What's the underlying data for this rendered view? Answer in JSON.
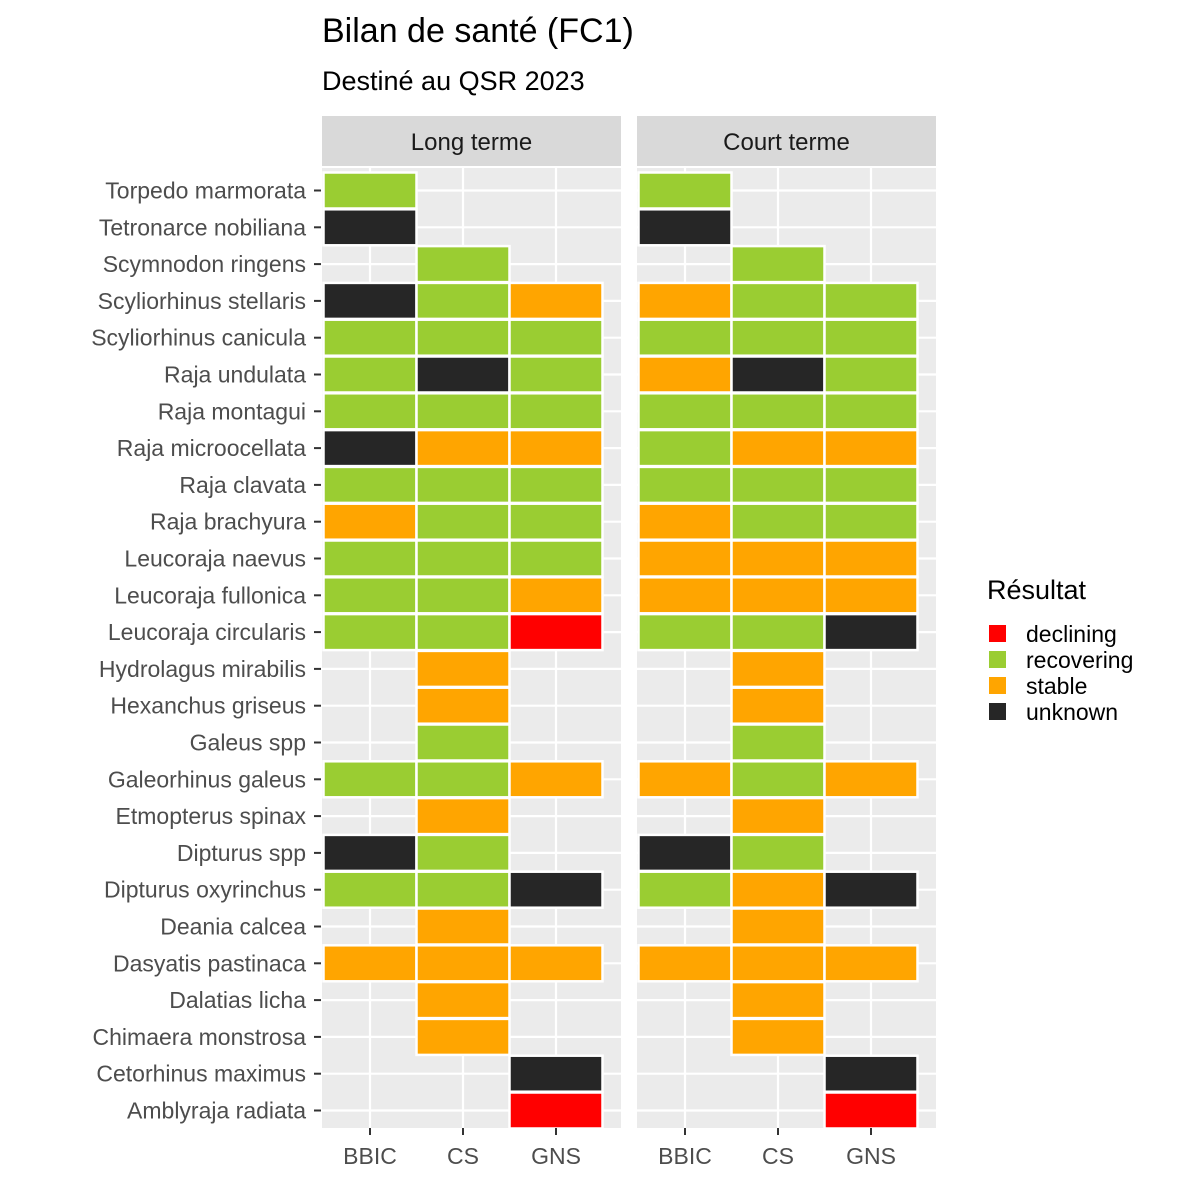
{
  "chart_data": {
    "type": "heatmap",
    "title": "Bilan de santé (FC1)",
    "subtitle": "Destiné au QSR 2023",
    "facets": [
      "Long terme",
      "Court terme"
    ],
    "x_categories": [
      "BBIC",
      "CS",
      "GNS"
    ],
    "y_categories": [
      "Torpedo marmorata",
      "Tetronarce nobiliana",
      "Scymnodon ringens",
      "Scyliorhinus stellaris",
      "Scyliorhinus canicula",
      "Raja undulata",
      "Raja montagui",
      "Raja microocellata",
      "Raja clavata",
      "Raja brachyura",
      "Leucoraja naevus",
      "Leucoraja fullonica",
      "Leucoraja circularis",
      "Hydrolagus mirabilis",
      "Hexanchus griseus",
      "Galeus spp",
      "Galeorhinus galeus",
      "Etmopterus spinax",
      "Dipturus spp",
      "Dipturus oxyrinchus",
      "Deania calcea",
      "Dasyatis pastinaca",
      "Dalatias licha",
      "Chimaera monstrosa",
      "Cetorhinus maximus",
      "Amblyraja radiata"
    ],
    "legend": {
      "title": "Résultat",
      "position": "right",
      "entries": [
        {
          "label": "declining",
          "color": "#ff0000"
        },
        {
          "label": "recovering",
          "color": "#9acd32"
        },
        {
          "label": "stable",
          "color": "#ffa500"
        },
        {
          "label": "unknown",
          "color": "#262626"
        }
      ]
    },
    "cells": {
      "Long terme": {
        "Torpedo marmorata": [
          "recovering",
          null,
          null
        ],
        "Tetronarce nobiliana": [
          "unknown",
          null,
          null
        ],
        "Scymnodon ringens": [
          null,
          "recovering",
          null
        ],
        "Scyliorhinus stellaris": [
          "unknown",
          "recovering",
          "stable"
        ],
        "Scyliorhinus canicula": [
          "recovering",
          "recovering",
          "recovering"
        ],
        "Raja undulata": [
          "recovering",
          "unknown",
          "recovering"
        ],
        "Raja montagui": [
          "recovering",
          "recovering",
          "recovering"
        ],
        "Raja microocellata": [
          "unknown",
          "stable",
          "stable"
        ],
        "Raja clavata": [
          "recovering",
          "recovering",
          "recovering"
        ],
        "Raja brachyura": [
          "stable",
          "recovering",
          "recovering"
        ],
        "Leucoraja naevus": [
          "recovering",
          "recovering",
          "recovering"
        ],
        "Leucoraja fullonica": [
          "recovering",
          "recovering",
          "stable"
        ],
        "Leucoraja circularis": [
          "recovering",
          "recovering",
          "declining"
        ],
        "Hydrolagus mirabilis": [
          null,
          "stable",
          null
        ],
        "Hexanchus griseus": [
          null,
          "stable",
          null
        ],
        "Galeus spp": [
          null,
          "recovering",
          null
        ],
        "Galeorhinus galeus": [
          "recovering",
          "recovering",
          "stable"
        ],
        "Etmopterus spinax": [
          null,
          "stable",
          null
        ],
        "Dipturus spp": [
          "unknown",
          "recovering",
          null
        ],
        "Dipturus oxyrinchus": [
          "recovering",
          "recovering",
          "unknown"
        ],
        "Deania calcea": [
          null,
          "stable",
          null
        ],
        "Dasyatis pastinaca": [
          "stable",
          "stable",
          "stable"
        ],
        "Dalatias licha": [
          null,
          "stable",
          null
        ],
        "Chimaera monstrosa": [
          null,
          "stable",
          null
        ],
        "Cetorhinus maximus": [
          null,
          null,
          "unknown"
        ],
        "Amblyraja radiata": [
          null,
          null,
          "declining"
        ]
      },
      "Court terme": {
        "Torpedo marmorata": [
          "recovering",
          null,
          null
        ],
        "Tetronarce nobiliana": [
          "unknown",
          null,
          null
        ],
        "Scymnodon ringens": [
          null,
          "recovering",
          null
        ],
        "Scyliorhinus stellaris": [
          "stable",
          "recovering",
          "recovering"
        ],
        "Scyliorhinus canicula": [
          "recovering",
          "recovering",
          "recovering"
        ],
        "Raja undulata": [
          "stable",
          "unknown",
          "recovering"
        ],
        "Raja montagui": [
          "recovering",
          "recovering",
          "recovering"
        ],
        "Raja microocellata": [
          "recovering",
          "stable",
          "stable"
        ],
        "Raja clavata": [
          "recovering",
          "recovering",
          "recovering"
        ],
        "Raja brachyura": [
          "stable",
          "recovering",
          "recovering"
        ],
        "Leucoraja naevus": [
          "stable",
          "stable",
          "stable"
        ],
        "Leucoraja fullonica": [
          "stable",
          "stable",
          "stable"
        ],
        "Leucoraja circularis": [
          "recovering",
          "recovering",
          "unknown"
        ],
        "Hydrolagus mirabilis": [
          null,
          "stable",
          null
        ],
        "Hexanchus griseus": [
          null,
          "stable",
          null
        ],
        "Galeus spp": [
          null,
          "recovering",
          null
        ],
        "Galeorhinus galeus": [
          "stable",
          "recovering",
          "stable"
        ],
        "Etmopterus spinax": [
          null,
          "stable",
          null
        ],
        "Dipturus spp": [
          "unknown",
          "recovering",
          null
        ],
        "Dipturus oxyrinchus": [
          "recovering",
          "stable",
          "unknown"
        ],
        "Deania calcea": [
          null,
          "stable",
          null
        ],
        "Dasyatis pastinaca": [
          "stable",
          "stable",
          "stable"
        ],
        "Dalatias licha": [
          null,
          "stable",
          null
        ],
        "Chimaera monstrosa": [
          null,
          "stable",
          null
        ],
        "Cetorhinus maximus": [
          null,
          null,
          "unknown"
        ],
        "Amblyraja radiata": [
          null,
          null,
          "declining"
        ]
      }
    },
    "panel_background": "#ebebeb",
    "strip_background": "#d9d9d9",
    "grid": true
  }
}
